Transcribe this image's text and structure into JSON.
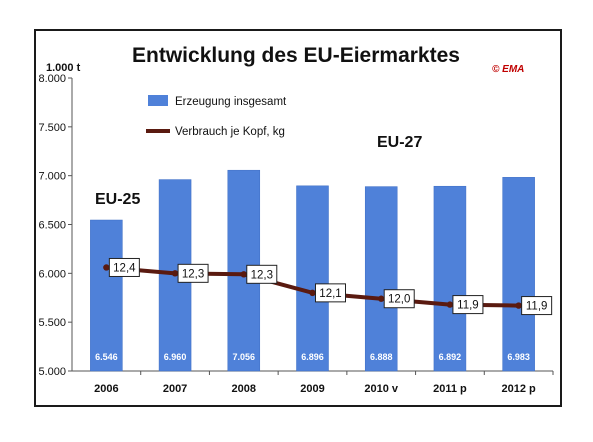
{
  "chart_data": {
    "type": "bar",
    "title": "Entwicklung des EU-Eiermarktes",
    "copyright": "© EMA",
    "ylabel": "1.000 t",
    "ylim": [
      5000,
      8000
    ],
    "yticks": [
      "5.000",
      "5.500",
      "6.000",
      "6.500",
      "7.000",
      "7.500",
      "8.000"
    ],
    "categories": [
      "2006",
      "2007",
      "2008",
      "2009",
      "2010 v",
      "2011 p",
      "2012 p"
    ],
    "series": [
      {
        "name": "Erzeugung insgesamt",
        "type": "bar",
        "color": "#4f81d9",
        "values": [
          6546,
          6960,
          7056,
          6896,
          6888,
          6892,
          6983
        ],
        "labels": [
          "6.546",
          "6.960",
          "7.056",
          "6.896",
          "6.888",
          "6.892",
          "6.983"
        ]
      },
      {
        "name": "Verbrauch je Kopf, kg",
        "type": "line",
        "color": "#5a1a10",
        "values": [
          12.4,
          12.3,
          12.3,
          12.1,
          12.0,
          11.9,
          11.9
        ],
        "labels": [
          "12,4",
          "12,3",
          "12,3",
          "12,1",
          "12,0",
          "11,9",
          "11,9"
        ]
      }
    ],
    "line_plot_values": [
      6060,
      6000,
      5990,
      5800,
      5740,
      5680,
      5670
    ],
    "annotations": [
      "EU-25",
      "EU-27"
    ],
    "grid": false,
    "legend_position": "top-left"
  }
}
